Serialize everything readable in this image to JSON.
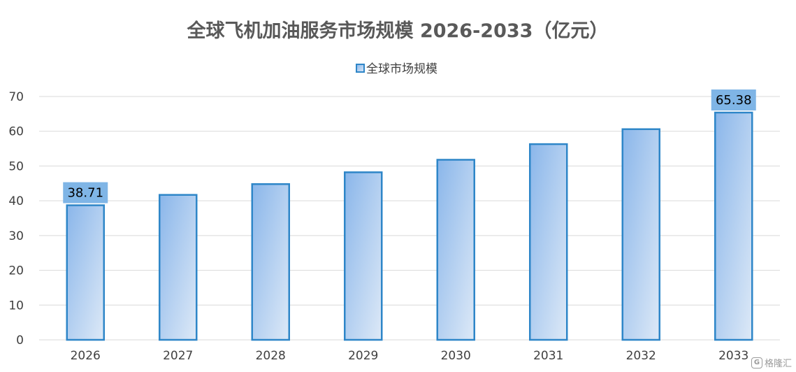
{
  "chart_data": {
    "type": "bar",
    "title": "全球飞机加油服务市场规模 2026-2033（亿元）",
    "categories": [
      "2026",
      "2027",
      "2028",
      "2029",
      "2030",
      "2031",
      "2032",
      "2033"
    ],
    "series": [
      {
        "name": "全球市场规模",
        "values": [
          38.71,
          41.7,
          44.8,
          48.2,
          51.8,
          56.3,
          60.6,
          65.38
        ]
      }
    ],
    "data_labels": [
      {
        "category": "2026",
        "text": "38.71"
      },
      {
        "category": "2033",
        "text": "65.38"
      }
    ],
    "yticks": [
      "0",
      "10",
      "20",
      "30",
      "40",
      "50",
      "60",
      "70"
    ],
    "ylim": [
      0,
      70
    ],
    "xlabel": "",
    "ylabel": "",
    "grid": true,
    "legend_position": "top-center",
    "colors": {
      "bar_gradient_start": "#8ab6ea",
      "bar_gradient_end": "#dde9f7",
      "bar_border": "#2e86c8",
      "label_box": "#7fb5e6",
      "grid": "#d9d9d9"
    }
  },
  "watermark": {
    "icon": "gelonghui-logo-icon",
    "text": "格隆汇"
  }
}
